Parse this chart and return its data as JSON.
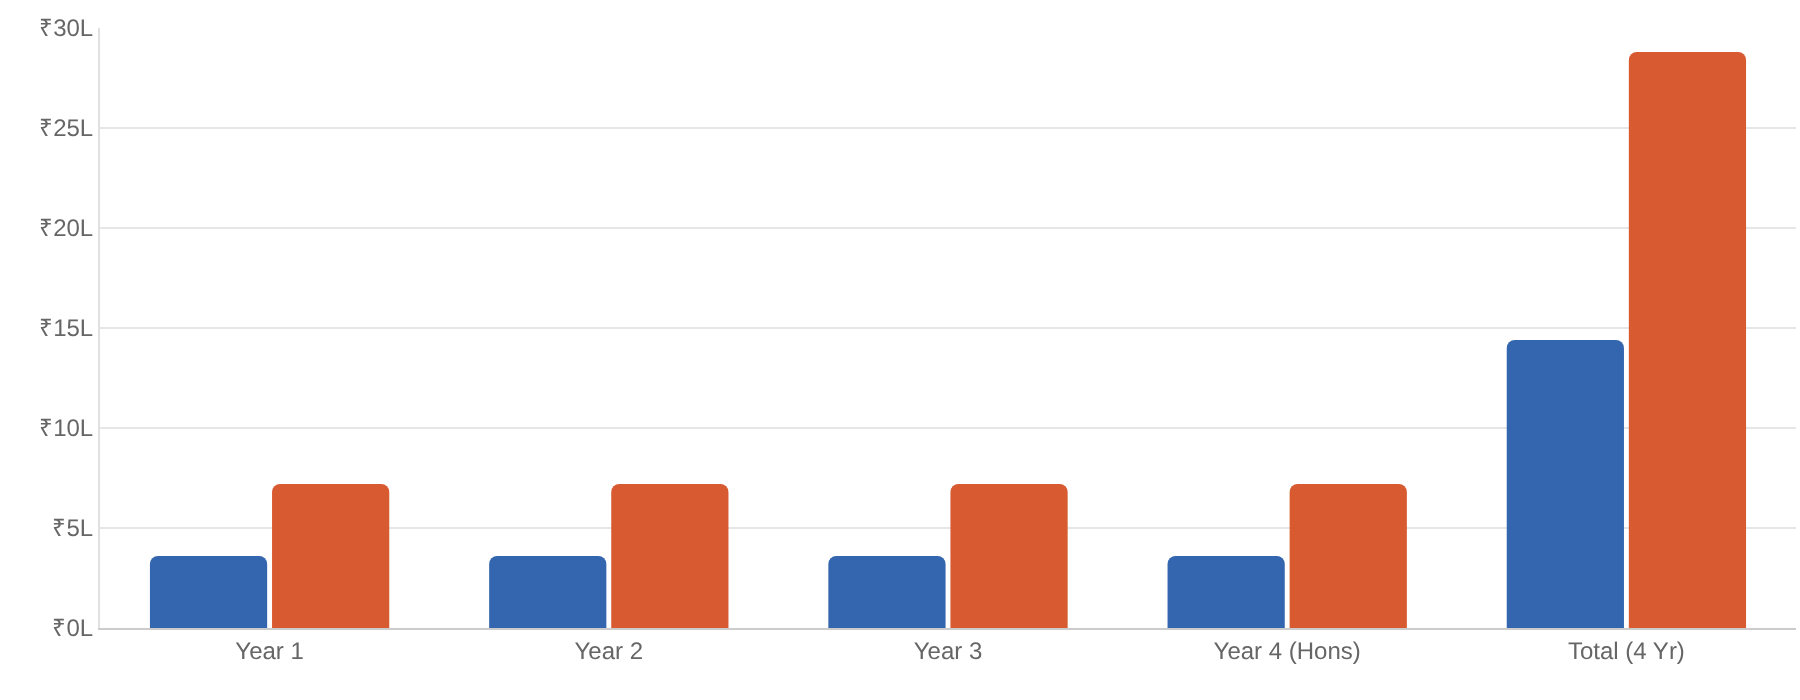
{
  "chart_data": {
    "type": "bar",
    "categories": [
      "Year 1",
      "Year 2",
      "Year 3",
      "Year 4 (Hons)",
      "Total (4 Yr)"
    ],
    "series": [
      {
        "color": "#3366ae",
        "values": [
          3.6,
          3.6,
          3.6,
          3.6,
          14.4
        ]
      },
      {
        "color": "#d85a31",
        "values": [
          7.2,
          7.2,
          7.2,
          7.2,
          28.8
        ]
      }
    ],
    "ylim": [
      0,
      30
    ],
    "yticks": [
      {
        "value": 0,
        "label": "₹0L"
      },
      {
        "value": 5,
        "label": "₹5L"
      },
      {
        "value": 10,
        "label": "₹10L"
      },
      {
        "value": 15,
        "label": "₹15L"
      },
      {
        "value": 20,
        "label": "₹20L"
      },
      {
        "value": 25,
        "label": "₹25L"
      },
      {
        "value": 30,
        "label": "₹30L"
      }
    ],
    "grid": "y"
  }
}
